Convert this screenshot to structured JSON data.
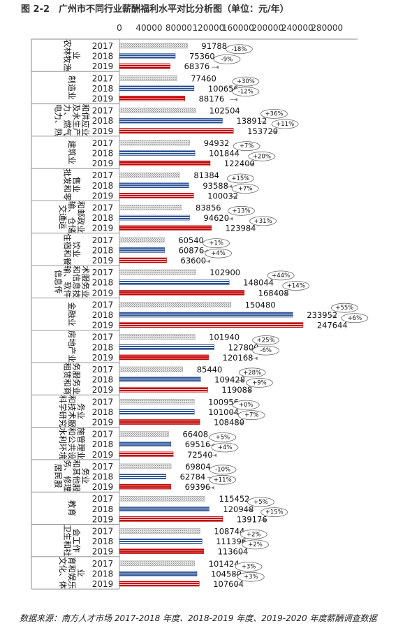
{
  "chart_data": {
    "type": "bar",
    "orientation": "horizontal",
    "title": "图 2-2　广州市不同行业薪酬福利水平对比分析图（单位：元/年）",
    "source": "数据来源：南方人才市场 2017-2018 年度、2018-2019 年度、2019-2020 年度薪酬调查数据",
    "x_ticks": [
      "0",
      "40000",
      "80000",
      "120000",
      "160000",
      "200000",
      "240000",
      "280000"
    ],
    "xlim": [
      0,
      280000
    ],
    "legend": "none",
    "series_colors": {
      "2017": "#b9b9b9",
      "2018": "#2f5496",
      "2019": "#c00000"
    },
    "groups": [
      {
        "name": "农林牧渔业",
        "lines": [
          "农林牧渔",
          "业"
        ],
        "values": [
          91788,
          75360,
          68376
        ],
        "changes": [
          "-18%",
          "-9%"
        ]
      },
      {
        "name": "制造业",
        "lines": [
          "制造业"
        ],
        "values": [
          77460,
          100656,
          88176
        ],
        "changes": [
          "+30%",
          "-12%"
        ]
      },
      {
        "name": "电力、热力、燃气及水生产和供应业",
        "lines": [
          "电力、热",
          "力、燃气",
          "及水生产",
          "和供应业"
        ],
        "values": [
          102504,
          138912,
          153720
        ],
        "changes": [
          "+36%",
          "+11%"
        ]
      },
      {
        "name": "建筑业",
        "lines": [
          "建筑业"
        ],
        "values": [
          94932,
          101844,
          122400
        ],
        "changes": [
          "+7%",
          "+20%"
        ]
      },
      {
        "name": "批发和零售业",
        "lines": [
          "批发和零",
          "售业"
        ],
        "values": [
          81384,
          93588,
          100032
        ],
        "changes": [
          "+15%",
          "+7%"
        ]
      },
      {
        "name": "交通运输、仓储和邮政业",
        "lines": [
          "交通运",
          "输、仓储",
          "和邮政业"
        ],
        "values": [
          83856,
          94620,
          123984
        ],
        "changes": [
          "+13%",
          "+31%"
        ]
      },
      {
        "name": "住宿和餐饮业",
        "lines": [
          "住宿和餐",
          "饮业"
        ],
        "values": [
          60540,
          60876,
          63600
        ],
        "changes": [
          "+1%",
          "+4%"
        ]
      },
      {
        "name": "信息传输、软件和信息技术服务业",
        "lines": [
          "信息传",
          "输、软件",
          "和信息技",
          "术服务业"
        ],
        "values": [
          102900,
          148044,
          168408
        ],
        "changes": [
          "+44%",
          "+14%"
        ]
      },
      {
        "name": "金融业",
        "lines": [
          "金融业"
        ],
        "values": [
          150480,
          233952,
          247644
        ],
        "changes": [
          "+55%",
          "+6%"
        ]
      },
      {
        "name": "房地产业",
        "lines": [
          "房地产业"
        ],
        "values": [
          101940,
          127800,
          120168
        ],
        "changes": [
          "+25%",
          "-6%"
        ]
      },
      {
        "name": "租赁和商务服务业",
        "lines": [
          "租赁和商",
          "务服务业"
        ],
        "values": [
          85440,
          109428,
          119088
        ],
        "changes": [
          "+28%",
          "+9%"
        ]
      },
      {
        "name": "科学研究和技术服务业",
        "lines": [
          "科学研究",
          "和技术服",
          "务业"
        ],
        "values": [
          100956,
          101004,
          108480
        ],
        "changes": [
          "+0%",
          "+7%"
        ]
      },
      {
        "name": "水利、环境和公共设施管理业",
        "lines": [
          "水利环境",
          "和公共设",
          "施管理业"
        ],
        "values": [
          66408,
          69516,
          72540
        ],
        "changes": [
          "+5%",
          "+4%"
        ]
      },
      {
        "name": "居民服务、修理和其他服务业",
        "lines": [
          "居民服",
          "务、修理",
          "和其他服",
          "务业"
        ],
        "values": [
          69804,
          62784,
          69396
        ],
        "changes": [
          "-10%",
          "+11%"
        ]
      },
      {
        "name": "教育",
        "lines": [
          "教育"
        ],
        "values": [
          115452,
          120948,
          139176
        ],
        "changes": [
          "+5%",
          "+15%"
        ]
      },
      {
        "name": "卫生和社会工作",
        "lines": [
          "卫生和社",
          "会工作"
        ],
        "values": [
          108744,
          111396,
          113604
        ],
        "changes": [
          "+2%",
          "+2%"
        ]
      },
      {
        "name": "文化、体育和娱乐业",
        "lines": [
          "文化、体",
          "育和娱乐",
          "业"
        ],
        "values": [
          101424,
          104580,
          107604
        ],
        "changes": [
          "+3%",
          "+3%"
        ]
      }
    ],
    "years": [
      "2017",
      "2018",
      "2019"
    ]
  }
}
